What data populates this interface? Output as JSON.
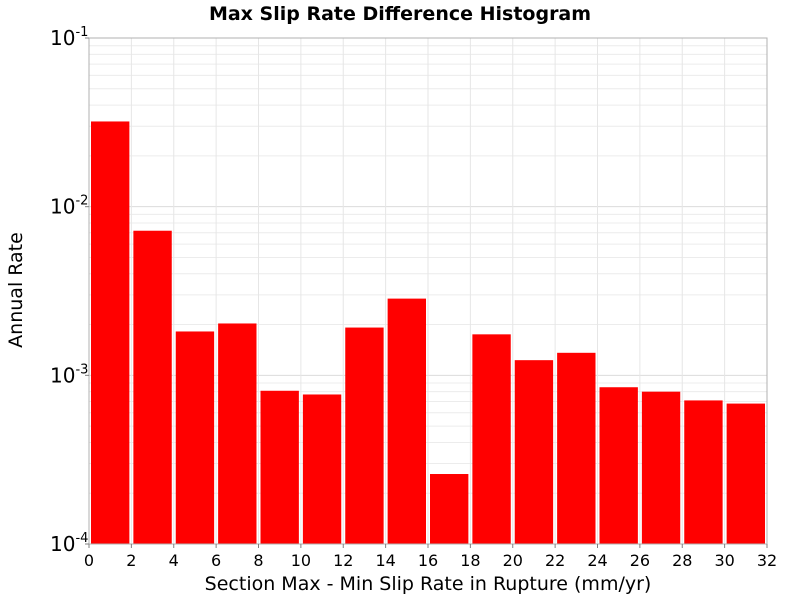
{
  "chart_data": {
    "type": "bar",
    "title": "Max Slip Rate Difference Histogram",
    "xlabel": "Section Max - Min Slip Rate in Rupture (mm/yr)",
    "ylabel": "Annual Rate",
    "xlim": [
      0,
      32
    ],
    "ylim": [
      0.0001,
      0.1
    ],
    "yscale": "log",
    "bin_width": 2,
    "x_ticks": [
      0,
      2,
      4,
      6,
      8,
      10,
      12,
      14,
      16,
      18,
      20,
      22,
      24,
      26,
      28,
      30,
      32
    ],
    "y_ticks": [
      {
        "base": "10",
        "exp": "-4",
        "value": 0.0001
      },
      {
        "base": "10",
        "exp": "-3",
        "value": 0.001
      },
      {
        "base": "10",
        "exp": "-2",
        "value": 0.01
      },
      {
        "base": "10",
        "exp": "-1",
        "value": 0.1
      }
    ],
    "bin_starts": [
      0,
      2,
      4,
      6,
      8,
      10,
      12,
      14,
      16,
      18,
      20,
      22,
      24,
      26,
      28,
      30
    ],
    "values": [
      0.032,
      0.0072,
      0.00182,
      0.00203,
      0.00081,
      0.00077,
      0.00192,
      0.00285,
      0.00026,
      0.00175,
      0.00123,
      0.00136,
      0.00085,
      0.0008,
      0.00071,
      0.00068
    ],
    "bar_color": "#ff0000",
    "grid": true
  }
}
